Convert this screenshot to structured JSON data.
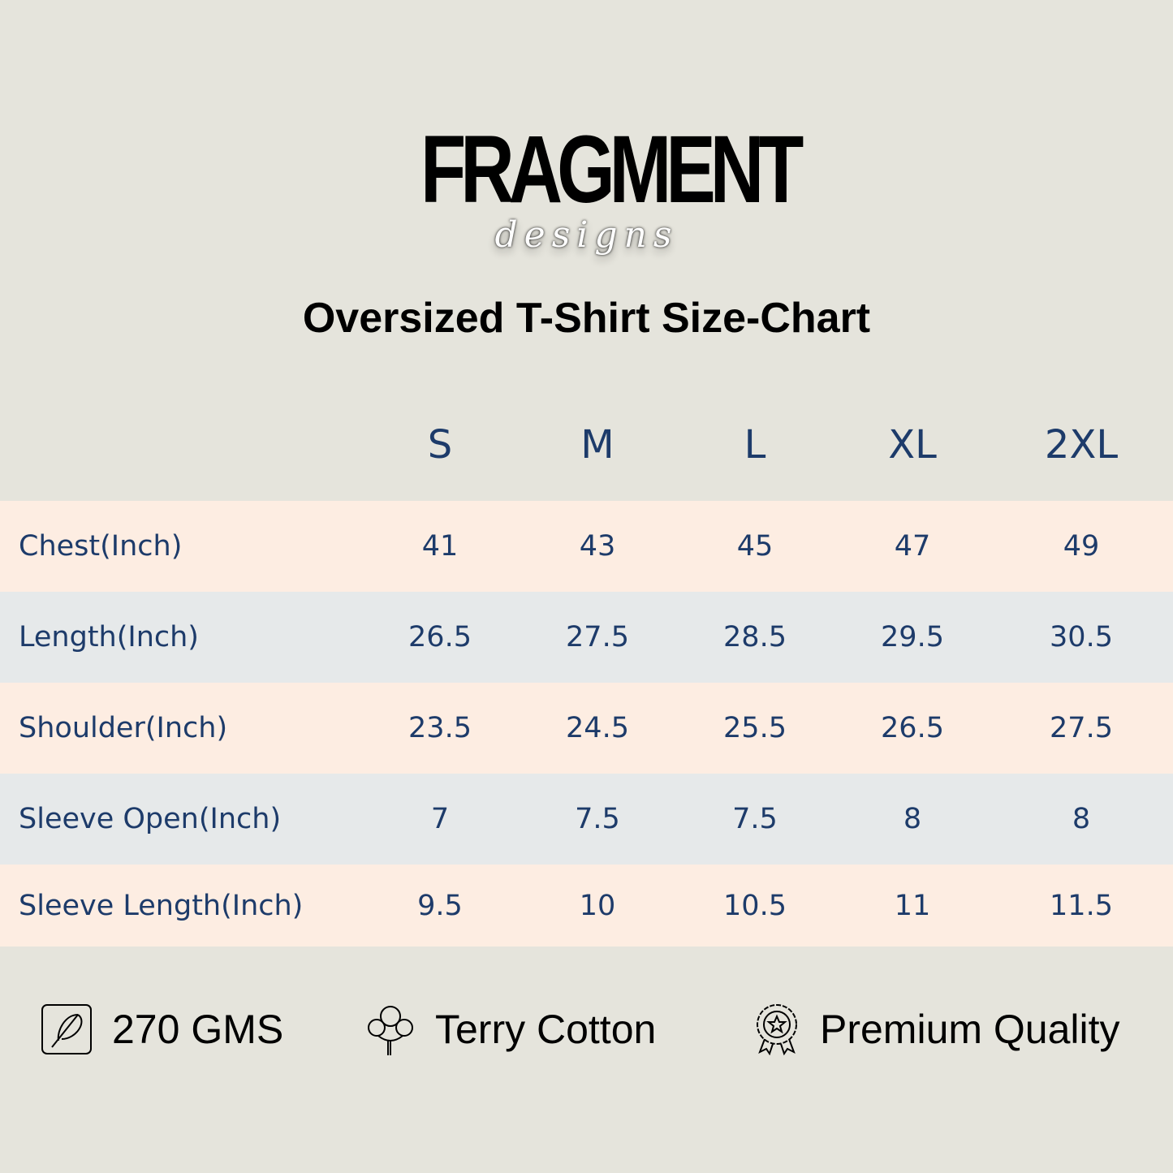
{
  "logo": {
    "main": "FRAGMENT",
    "sub": "designs"
  },
  "title": "Oversized T-Shirt Size-Chart",
  "sizes": [
    "S",
    "M",
    "L",
    "XL",
    "2XL"
  ],
  "rows": [
    {
      "label": "Chest(Inch)",
      "values": [
        "41",
        "43",
        "45",
        "47",
        "49"
      ]
    },
    {
      "label": "Length(Inch)",
      "values": [
        "26.5",
        "27.5",
        "28.5",
        "29.5",
        "30.5"
      ]
    },
    {
      "label": "Shoulder(Inch)",
      "values": [
        "23.5",
        "24.5",
        "25.5",
        "26.5",
        "27.5"
      ]
    },
    {
      "label": "Sleeve Open(Inch)",
      "values": [
        "7",
        "7.5",
        "7.5",
        "8",
        "8"
      ]
    },
    {
      "label": "Sleeve Length(Inch)",
      "values": [
        "9.5",
        "10",
        "10.5",
        "11",
        "11.5"
      ]
    }
  ],
  "features": [
    {
      "icon": "feather-icon",
      "label": "270 GMS"
    },
    {
      "icon": "cotton-icon",
      "label": "Terry Cotton"
    },
    {
      "icon": "badge-icon",
      "label": "Premium Quality"
    }
  ],
  "colors": {
    "background": "#e5e4dc",
    "row_peach": "#fdede2",
    "row_blue": "#e6e9ea",
    "text": "#1d3b6a"
  }
}
